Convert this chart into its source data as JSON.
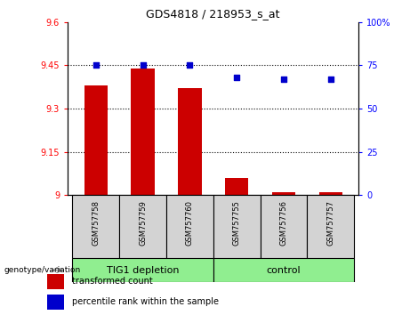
{
  "title": "GDS4818 / 218953_s_at",
  "samples": [
    "GSM757758",
    "GSM757759",
    "GSM757760",
    "GSM757755",
    "GSM757756",
    "GSM757757"
  ],
  "transformed_counts": [
    9.38,
    9.44,
    9.37,
    9.06,
    9.01,
    9.01
  ],
  "percentile_ranks": [
    75,
    75,
    75,
    68,
    67,
    67
  ],
  "ylim_left": [
    9.0,
    9.6
  ],
  "ylim_right": [
    0,
    100
  ],
  "yticks_left": [
    9.0,
    9.15,
    9.3,
    9.45,
    9.6
  ],
  "yticks_right": [
    0,
    25,
    50,
    75,
    100
  ],
  "ytick_labels_left": [
    "9",
    "9.15",
    "9.3",
    "9.45",
    "9.6"
  ],
  "ytick_labels_right": [
    "0",
    "25",
    "50",
    "75",
    "100%"
  ],
  "bar_color": "#cc0000",
  "dot_color": "#0000cc",
  "group_label": "genotype/variation",
  "legend_bar_label": "transformed count",
  "legend_dot_label": "percentile rank within the sample",
  "bar_width": 0.5,
  "bg_color_samples": "#d3d3d3",
  "bg_color_groups": "#90ee90",
  "group1_label": "TIG1 depletion",
  "group2_label": "control",
  "group1_indices": [
    0,
    1,
    2
  ],
  "group2_indices": [
    3,
    4,
    5
  ],
  "hline_positions": [
    9.15,
    9.3,
    9.45
  ],
  "title_fontsize": 9,
  "tick_fontsize": 7,
  "legend_fontsize": 7,
  "group_fontsize": 8,
  "sample_fontsize": 6
}
